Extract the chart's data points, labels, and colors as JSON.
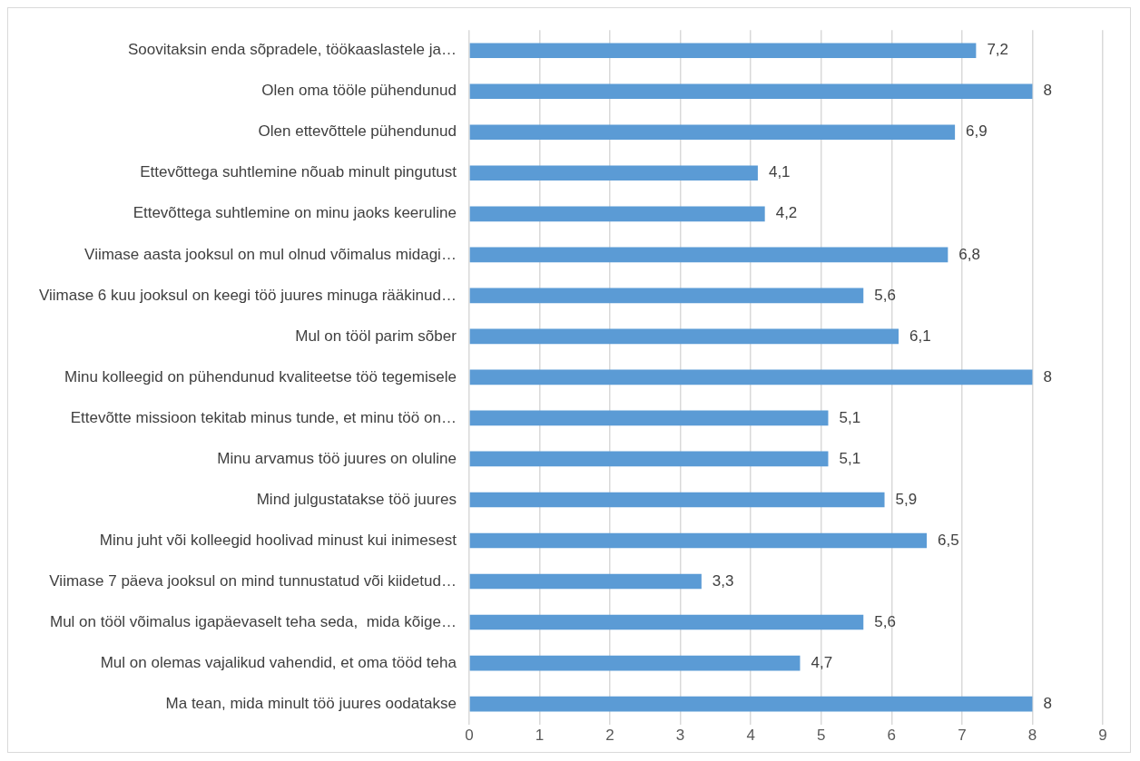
{
  "chart_data": {
    "type": "bar",
    "orientation": "horizontal",
    "categories": [
      "Soovitaksin enda sõpradele, töökaaslastele ja…",
      "Olen oma tööle pühendunud",
      "Olen ettevõttele pühendunud",
      "Ettevõttega suhtlemine nõuab minult pingutust",
      "Ettevõttega suhtlemine on minu jaoks keeruline",
      "Viimase aasta jooksul on mul olnud võimalus midagi…",
      "Viimase 6 kuu jooksul on keegi töö juures minuga rääkinud…",
      "Mul on tööl parim sõber",
      "Minu kolleegid on pühendunud kvaliteetse töö tegemisele",
      "Ettevõtte missioon tekitab minus tunde, et minu töö on…",
      "Minu arvamus töö juures on oluline",
      "Mind julgustatakse töö juures",
      "Minu juht või kolleegid hoolivad minust kui inimesest",
      "Viimase 7 päeva jooksul on mind tunnustatud või kiidetud…",
      "Mul on tööl võimalus igapäevaselt teha seda,  mida kõige…",
      "Mul on olemas vajalikud vahendid, et oma tööd teha",
      "Ma tean, mida minult töö juures oodatakse"
    ],
    "values": [
      7.2,
      8,
      6.9,
      4.1,
      4.2,
      6.8,
      5.6,
      6.1,
      8,
      5.1,
      5.1,
      5.9,
      6.5,
      3.3,
      5.6,
      4.7,
      8
    ],
    "value_labels": [
      "7,2",
      "8",
      "6,9",
      "4,1",
      "4,2",
      "6,8",
      "5,6",
      "6,1",
      "8",
      "5,1",
      "5,1",
      "5,9",
      "6,5",
      "3,3",
      "5,6",
      "4,7",
      "8"
    ],
    "color": "#5b9bd5",
    "xlim": [
      0,
      9
    ],
    "xticks": [
      0,
      1,
      2,
      3,
      4,
      5,
      6,
      7,
      8,
      9
    ],
    "grid": "x",
    "legend": false
  }
}
